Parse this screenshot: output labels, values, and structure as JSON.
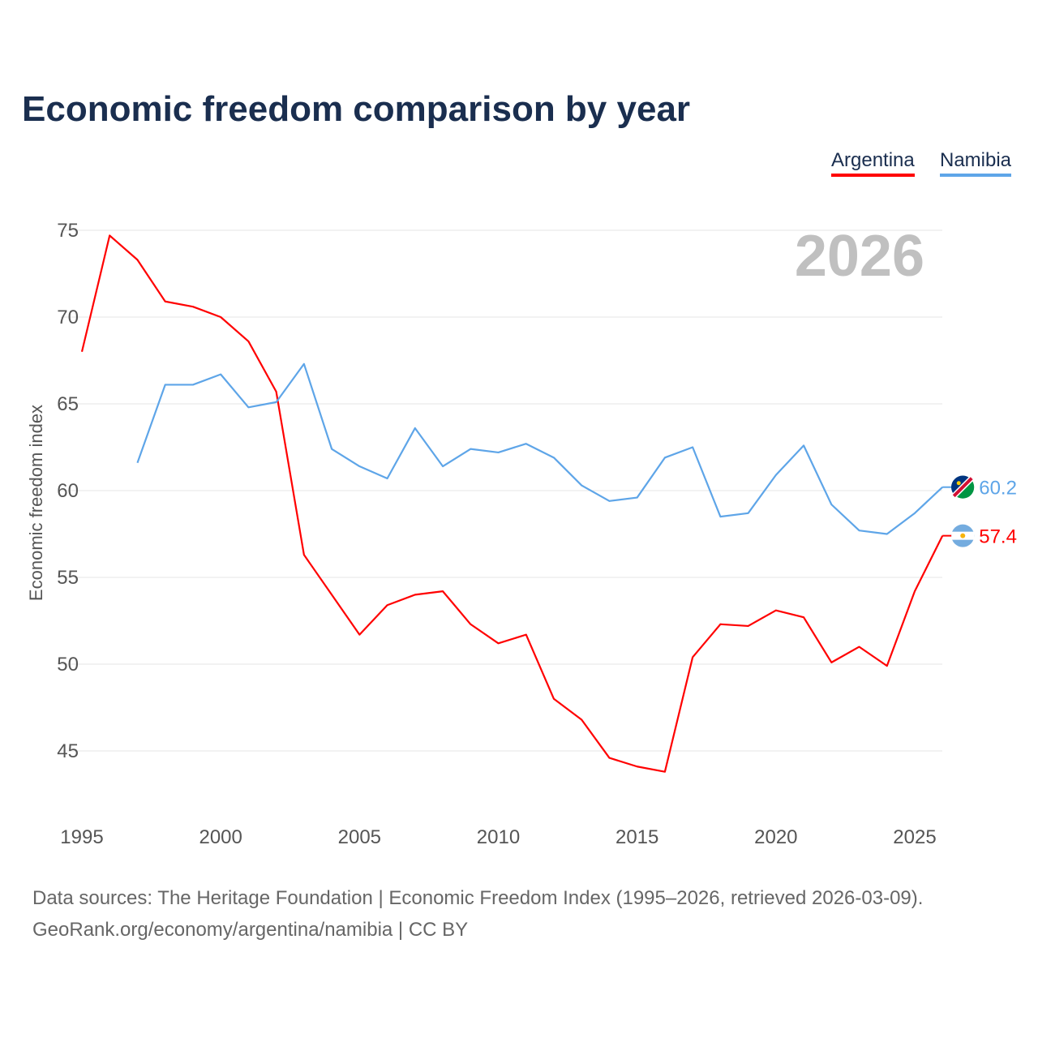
{
  "title": "Economic freedom comparison by year",
  "source_line1": "Data sources: The Heritage Foundation | Economic Freedom Index (1995–2026, retrieved 2026-03-09).",
  "source_line2": "GeoRank.org/economy/argentina/namibia | CC BY",
  "chart_data": {
    "type": "line",
    "title": "Economic freedom comparison by year",
    "xlabel": "",
    "ylabel": "Economic freedom index",
    "year_label": "2026",
    "xlim": [
      1995,
      2026
    ],
    "ylim": [
      42,
      76
    ],
    "xticks": [
      1995,
      2000,
      2005,
      2010,
      2015,
      2020,
      2025
    ],
    "yticks": [
      45,
      50,
      55,
      60,
      65,
      70,
      75
    ],
    "grid": true,
    "legend_position": "top-right",
    "series": [
      {
        "name": "Argentina",
        "color": "#ff0000",
        "end_label": "57.4",
        "flag": "argentina-flag",
        "x": [
          1995,
          1996,
          1997,
          1998,
          1999,
          2000,
          2001,
          2002,
          2003,
          2004,
          2005,
          2006,
          2007,
          2008,
          2009,
          2010,
          2011,
          2012,
          2013,
          2014,
          2015,
          2016,
          2017,
          2018,
          2019,
          2020,
          2021,
          2022,
          2023,
          2024,
          2025,
          2026
        ],
        "y": [
          68.0,
          74.7,
          73.3,
          70.9,
          70.6,
          70.0,
          68.6,
          65.7,
          56.3,
          54.0,
          51.7,
          53.4,
          54.0,
          54.2,
          52.3,
          51.2,
          51.7,
          48.0,
          46.8,
          44.6,
          44.1,
          43.8,
          50.4,
          52.3,
          52.2,
          53.1,
          52.7,
          50.1,
          51.0,
          49.9,
          54.2,
          57.4
        ]
      },
      {
        "name": "Namibia",
        "color": "#5ea5e8",
        "end_label": "60.2",
        "flag": "namibia-flag",
        "x": [
          1997,
          1998,
          1999,
          2000,
          2001,
          2002,
          2003,
          2004,
          2005,
          2006,
          2007,
          2008,
          2009,
          2010,
          2011,
          2012,
          2013,
          2014,
          2015,
          2016,
          2017,
          2018,
          2019,
          2020,
          2021,
          2022,
          2023,
          2024,
          2025,
          2026
        ],
        "y": [
          61.6,
          66.1,
          66.1,
          66.7,
          64.8,
          65.1,
          67.3,
          62.4,
          61.4,
          60.7,
          63.6,
          61.4,
          62.4,
          62.2,
          62.7,
          61.9,
          60.3,
          59.4,
          59.6,
          61.9,
          62.5,
          58.5,
          58.7,
          60.9,
          62.6,
          59.2,
          57.7,
          57.5,
          58.7,
          60.2
        ]
      }
    ]
  }
}
